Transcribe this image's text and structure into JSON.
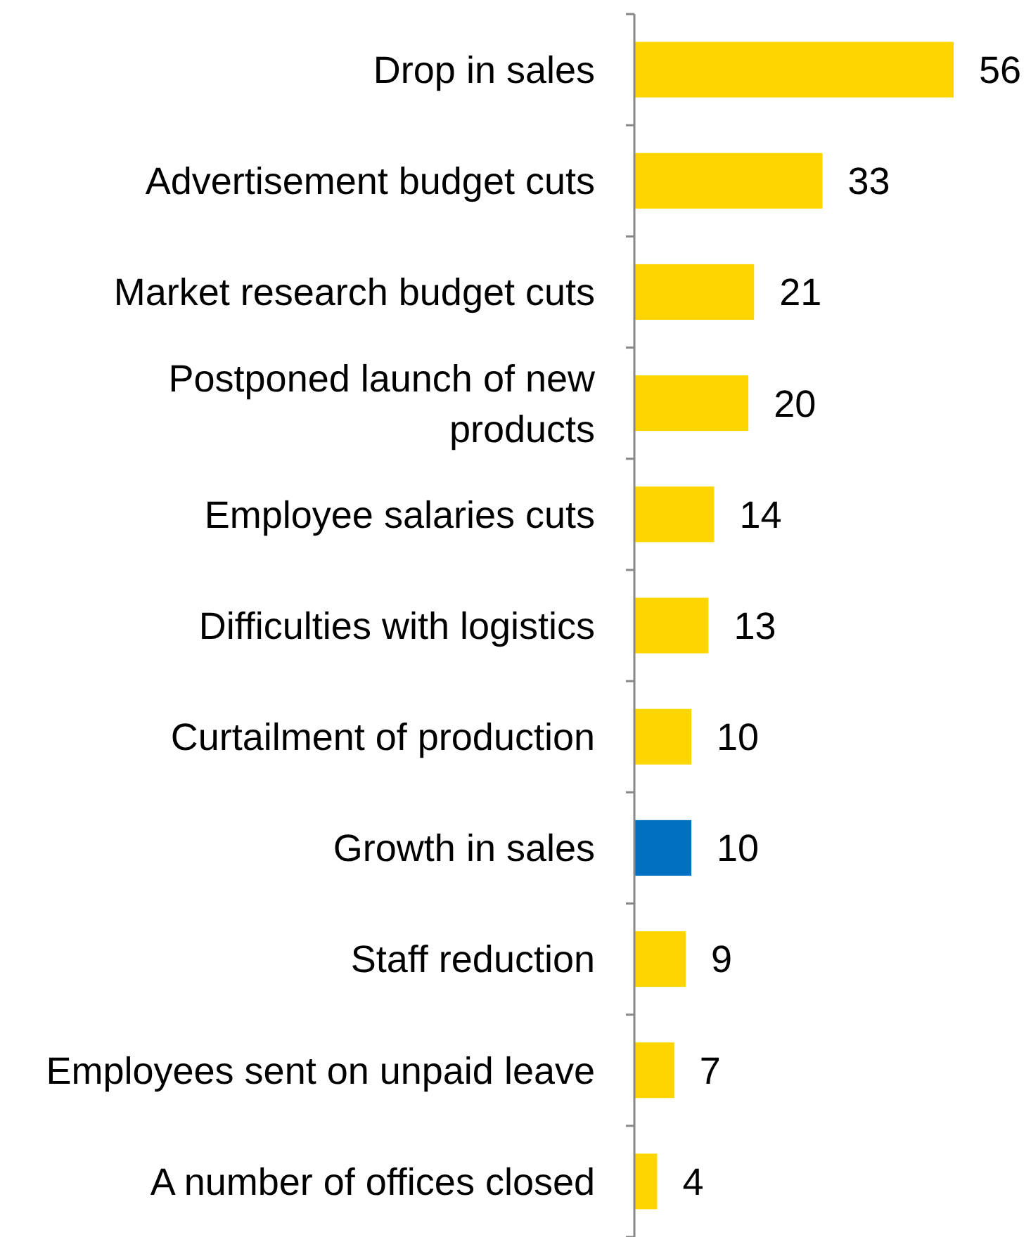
{
  "chart_data": {
    "type": "bar",
    "orientation": "horizontal",
    "categories": [
      "Drop in sales",
      "Advertisement budget cuts",
      "Market research budget cuts",
      "Postponed launch of new products",
      "Employee salaries cuts",
      "Difficulties with logistics",
      "Curtailment of production",
      "Growth in sales",
      "Staff reduction",
      "Employees sent on unpaid leave",
      "A number of offices closed"
    ],
    "values": [
      56,
      33,
      21,
      20,
      14,
      13,
      10,
      10,
      9,
      7,
      4
    ],
    "colors": [
      "#ffd500",
      "#ffd500",
      "#ffd500",
      "#ffd500",
      "#ffd500",
      "#ffd500",
      "#ffd500",
      "#0070c0",
      "#ffd500",
      "#ffd500",
      "#ffd500"
    ],
    "data_labels": true
  }
}
